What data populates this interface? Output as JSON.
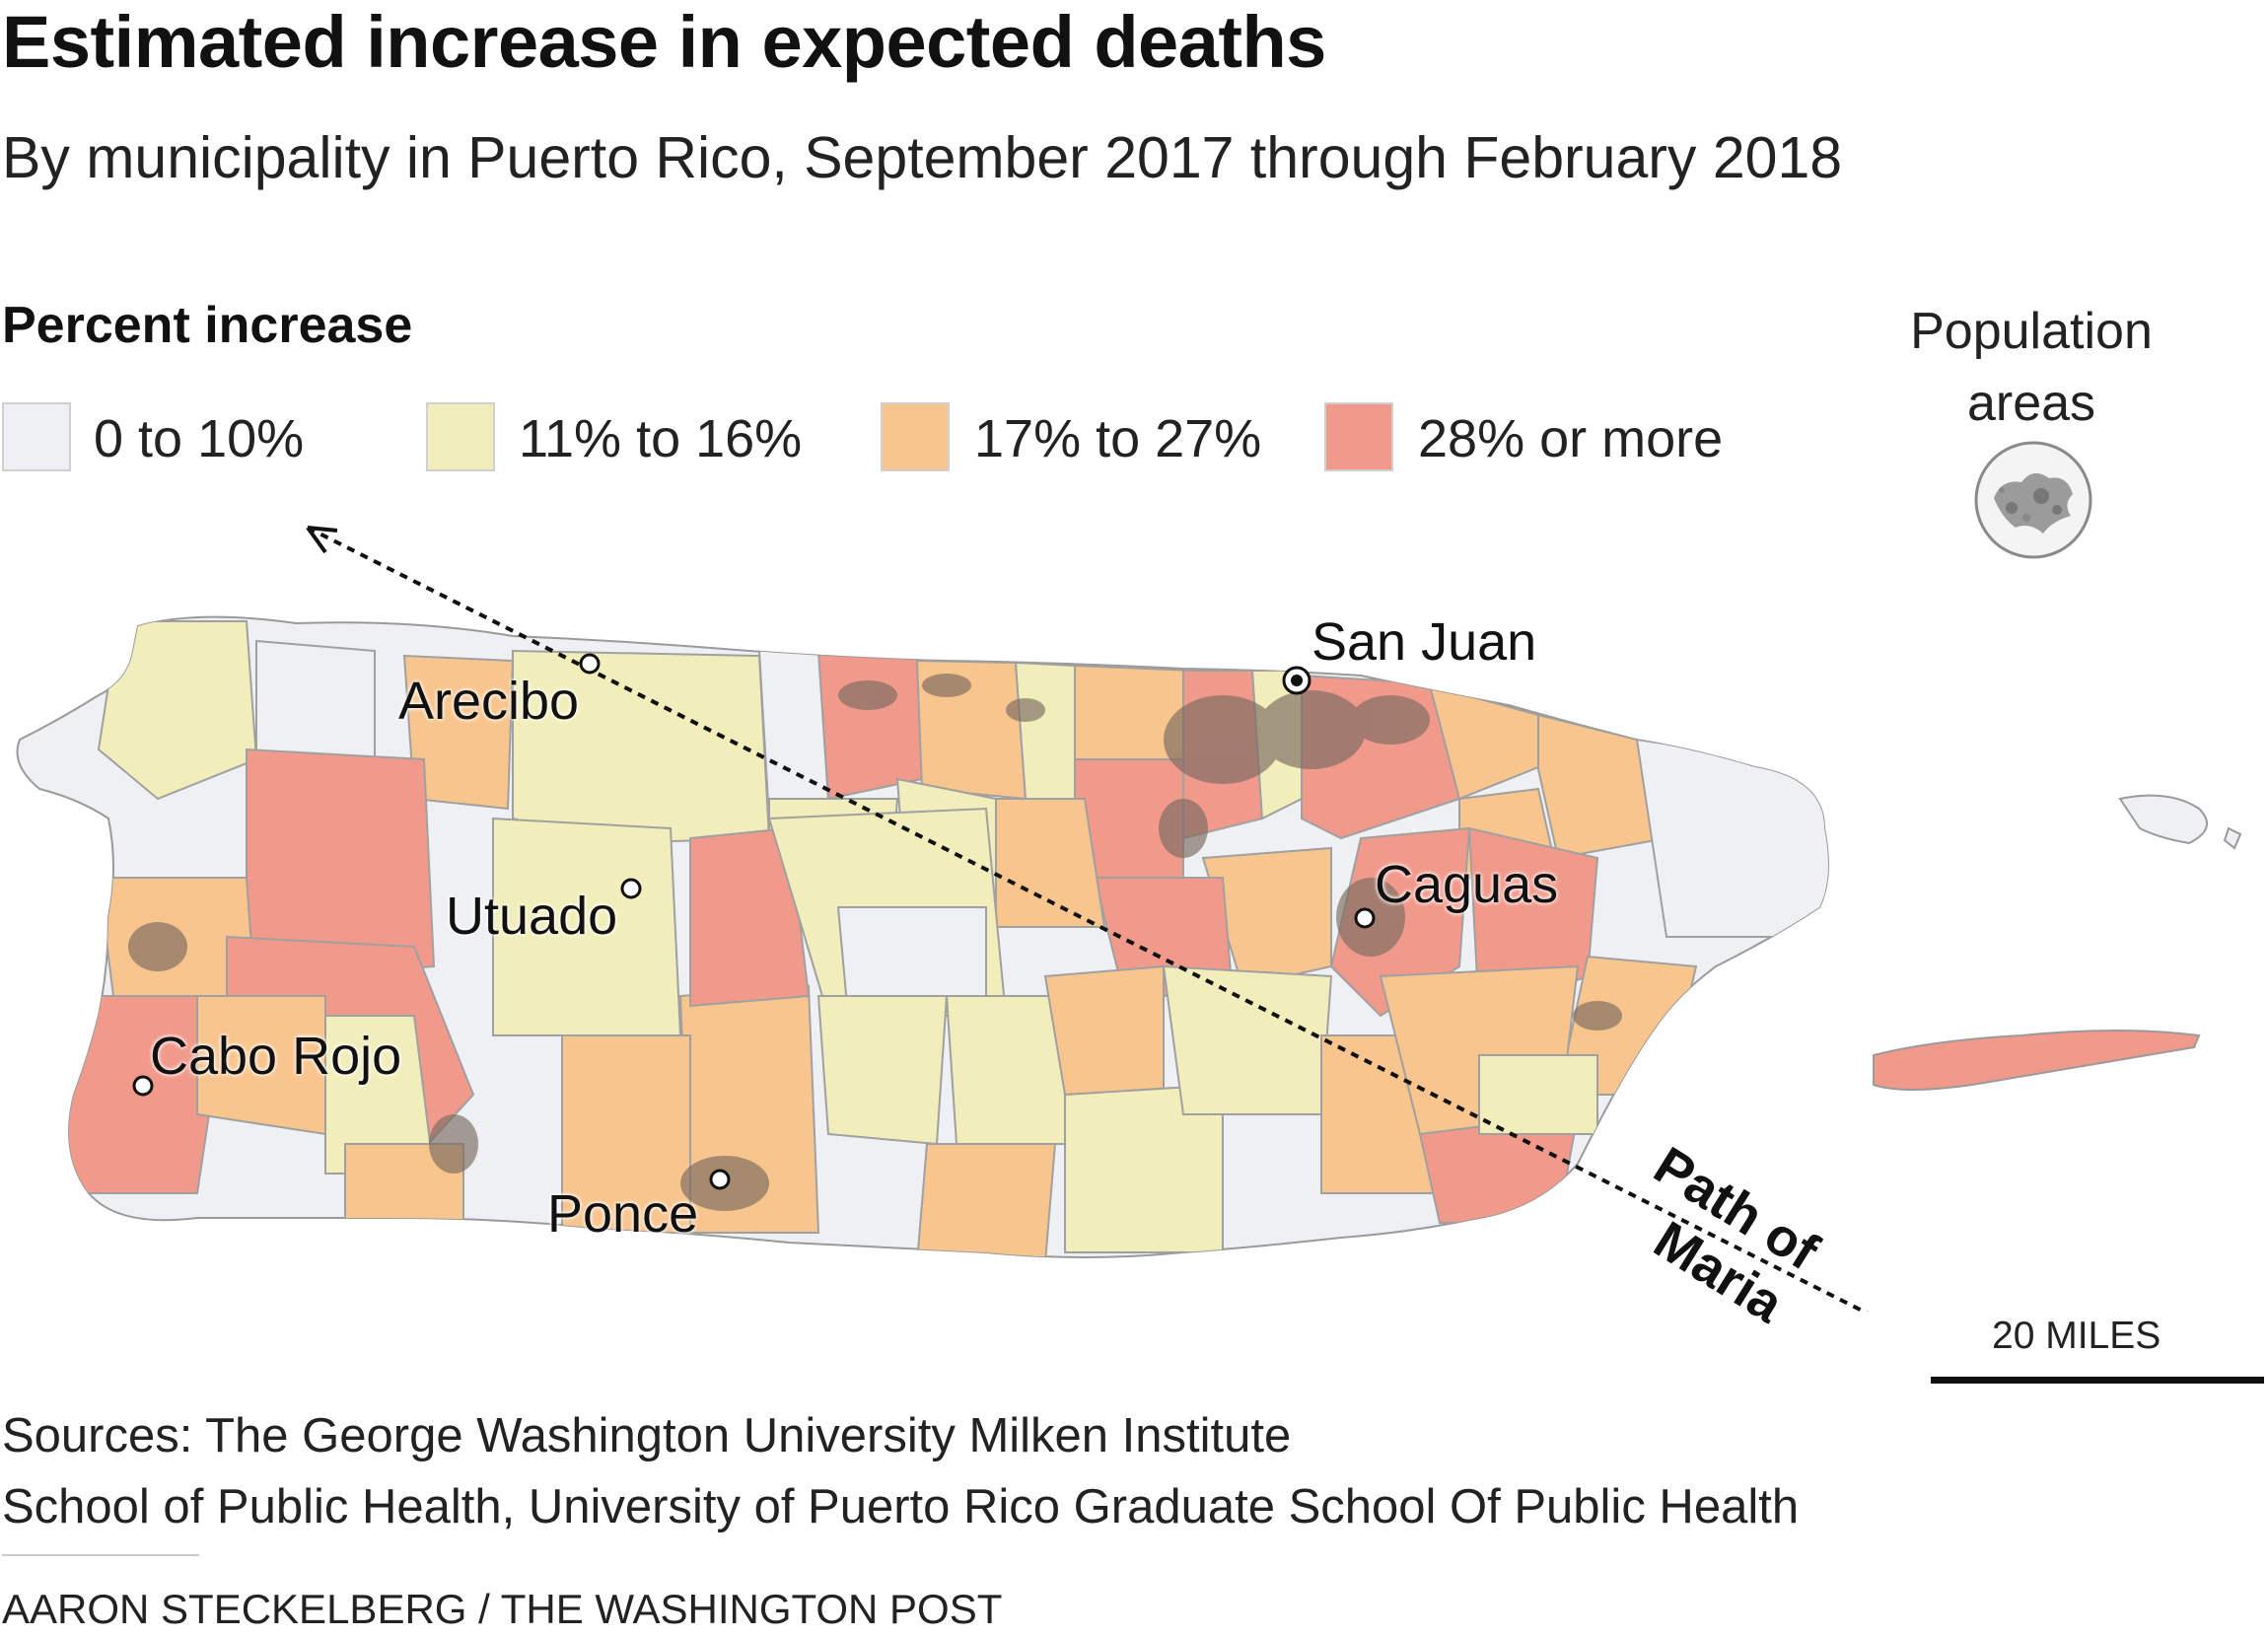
{
  "title": "Estimated increase in expected deaths",
  "subtitle": "By municipality in Puerto Rico, September 2017 through February 2018",
  "legend": {
    "title": "Percent increase",
    "items": [
      {
        "label": "0 to 10%",
        "color": "#eef0f3"
      },
      {
        "label": "11% to 16%",
        "color": "#f1eebc"
      },
      {
        "label": "17% to 27%",
        "color": "#f8c58e"
      },
      {
        "label": "28% or more",
        "color": "#f19a8c"
      }
    ]
  },
  "population_areas_label": "Population areas",
  "cities": {
    "san_juan": "San Juan",
    "arecibo": "Arecibo",
    "caguas": "Caguas",
    "utuado": "Utuado",
    "cabo_rojo": "Cabo Rojo",
    "ponce": "Ponce"
  },
  "path_label": {
    "line1": "Path of",
    "line2": "Maria"
  },
  "scale_label": "20 MILES",
  "sources": {
    "line1": "Sources: The George Washington University Milken Institute",
    "line2": "School of Public Health, University of Puerto Rico Graduate School Of Public Health"
  },
  "credit": "AARON STECKELBERG / THE WASHINGTON POST",
  "colors": {
    "population": "#7a6a60",
    "border": "#9a9a9a",
    "text": "#111111"
  }
}
